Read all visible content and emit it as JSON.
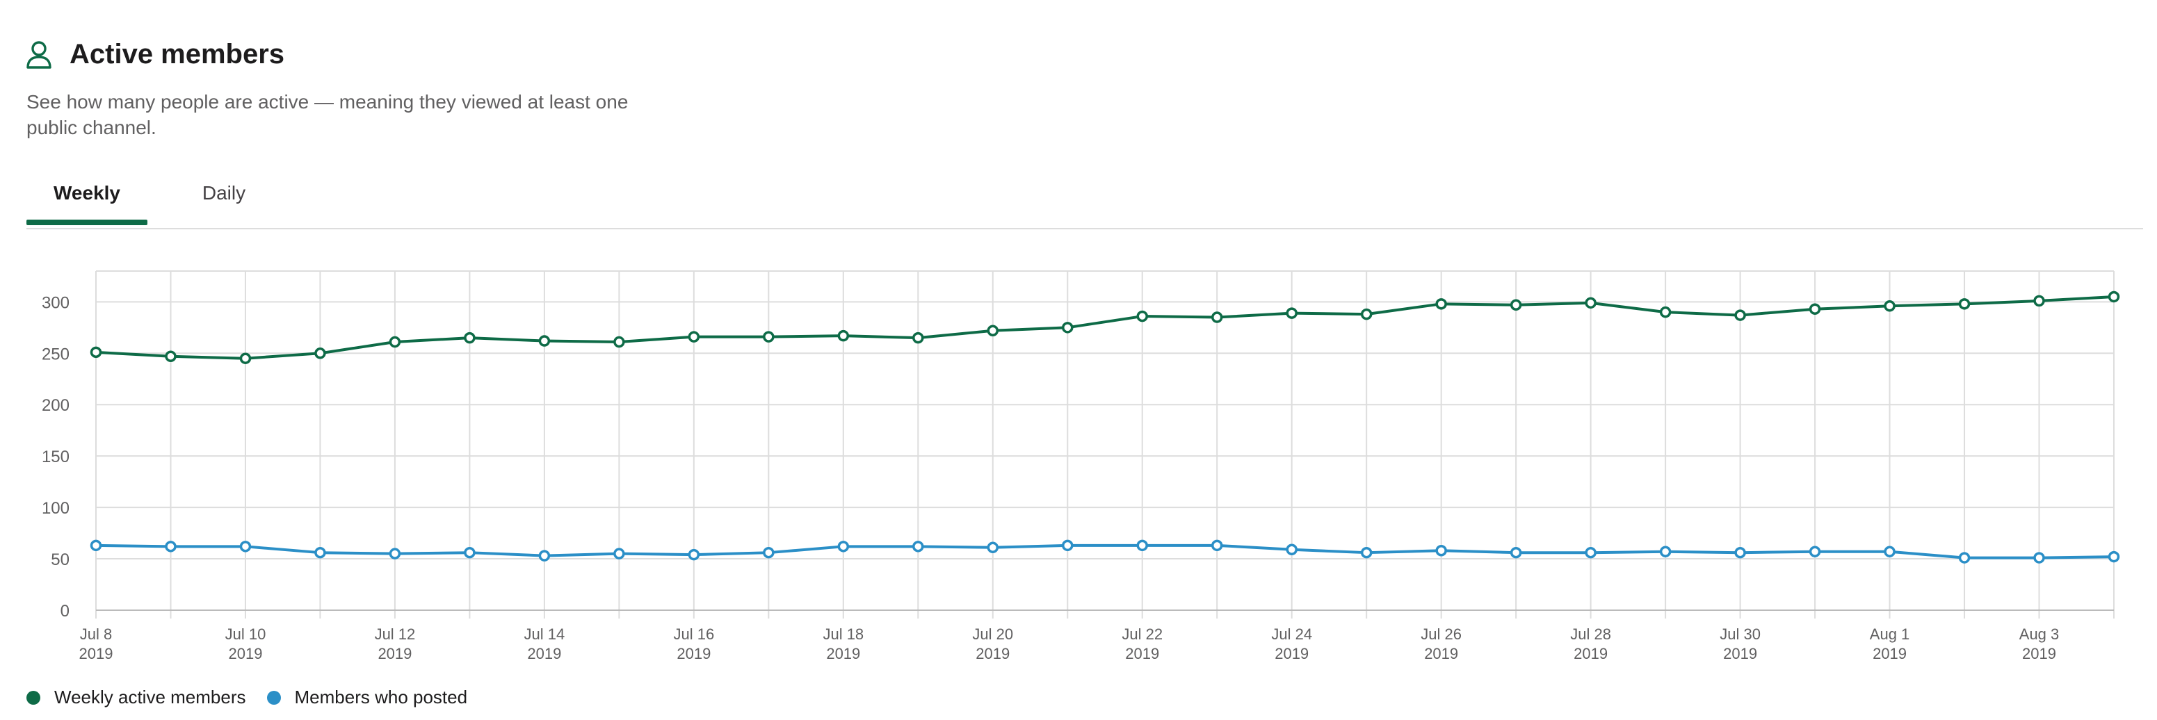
{
  "header": {
    "title": "Active members",
    "icon": "person-icon",
    "description": "See how many people are active — meaning they viewed at least one public channel."
  },
  "tabs": [
    {
      "label": "Weekly",
      "selected": true
    },
    {
      "label": "Daily",
      "selected": false
    }
  ],
  "colors": {
    "accent": "#0e6b47",
    "series1": "#0e6b47",
    "series2": "#2b8fc7",
    "grid": "#dddddd"
  },
  "chart_data": {
    "type": "line",
    "title": "",
    "xlabel": "",
    "ylabel": "",
    "ylim": [
      0,
      330
    ],
    "yticks": [
      0,
      50,
      100,
      150,
      200,
      250,
      300
    ],
    "x": [
      "Jul 8 2019",
      "Jul 9 2019",
      "Jul 10 2019",
      "Jul 11 2019",
      "Jul 12 2019",
      "Jul 13 2019",
      "Jul 14 2019",
      "Jul 15 2019",
      "Jul 16 2019",
      "Jul 17 2019",
      "Jul 18 2019",
      "Jul 19 2019",
      "Jul 20 2019",
      "Jul 21 2019",
      "Jul 22 2019",
      "Jul 23 2019",
      "Jul 24 2019",
      "Jul 25 2019",
      "Jul 26 2019",
      "Jul 27 2019",
      "Jul 28 2019",
      "Jul 29 2019",
      "Jul 30 2019",
      "Jul 31 2019",
      "Aug 1 2019",
      "Aug 2 2019",
      "Aug 3 2019",
      "Aug 4 2019"
    ],
    "x_tick_labels": [
      {
        "index": 0,
        "line1": "Jul 8",
        "line2": "2019"
      },
      {
        "index": 2,
        "line1": "Jul 10",
        "line2": "2019"
      },
      {
        "index": 4,
        "line1": "Jul 12",
        "line2": "2019"
      },
      {
        "index": 6,
        "line1": "Jul 14",
        "line2": "2019"
      },
      {
        "index": 8,
        "line1": "Jul 16",
        "line2": "2019"
      },
      {
        "index": 10,
        "line1": "Jul 18",
        "line2": "2019"
      },
      {
        "index": 12,
        "line1": "Jul 20",
        "line2": "2019"
      },
      {
        "index": 14,
        "line1": "Jul 22",
        "line2": "2019"
      },
      {
        "index": 16,
        "line1": "Jul 24",
        "line2": "2019"
      },
      {
        "index": 18,
        "line1": "Jul 26",
        "line2": "2019"
      },
      {
        "index": 20,
        "line1": "Jul 28",
        "line2": "2019"
      },
      {
        "index": 22,
        "line1": "Jul 30",
        "line2": "2019"
      },
      {
        "index": 24,
        "line1": "Aug 1",
        "line2": "2019"
      },
      {
        "index": 26,
        "line1": "Aug 3",
        "line2": "2019"
      }
    ],
    "series": [
      {
        "name": "Weekly active members",
        "values": [
          251,
          247,
          245,
          250,
          261,
          265,
          262,
          261,
          266,
          266,
          267,
          265,
          272,
          275,
          286,
          285,
          289,
          288,
          298,
          297,
          299,
          290,
          287,
          293,
          296,
          298,
          301,
          305
        ]
      },
      {
        "name": "Members who posted",
        "values": [
          63,
          62,
          62,
          56,
          55,
          56,
          53,
          55,
          54,
          56,
          62,
          62,
          61,
          63,
          63,
          63,
          59,
          56,
          58,
          56,
          56,
          57,
          56,
          57,
          57,
          51,
          51,
          52
        ]
      }
    ],
    "grid": true,
    "legend": "bottom-left"
  }
}
